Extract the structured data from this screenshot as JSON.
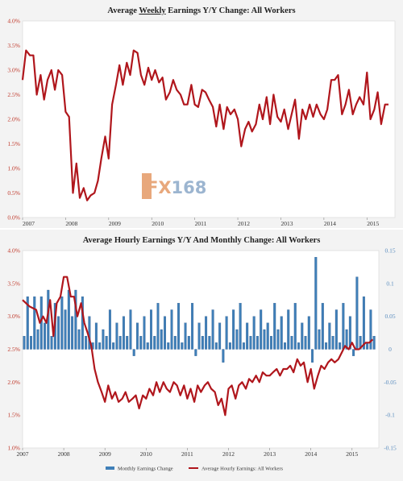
{
  "colors": {
    "red": "#b0161c",
    "blue": "#3f7fb8",
    "blue_edge": "#26558a",
    "left_tick": "#c0392b",
    "right_tick": "#5b8dbf",
    "grid": "#e3e3e3",
    "watermark_fx": "#e8a87c",
    "watermark_num": "#9cb5d0"
  },
  "watermark": {
    "fx": "FX",
    "num": "168"
  },
  "chart_data": [
    {
      "type": "line",
      "title": "Average Weekly Earnings Y/Y Change: All Workers",
      "title_parts": [
        "Average ",
        "Weekly",
        " Earnings Y/Y Change: All Workers"
      ],
      "xlabel": "",
      "ylabel": "",
      "xlim": [
        2007,
        2015.65
      ],
      "ylim": [
        0,
        4
      ],
      "yticks": [
        "0.0%",
        "0.5%",
        "1.0%",
        "1.5%",
        "2.0%",
        "2.5%",
        "3.0%",
        "3.5%",
        "4.0%"
      ],
      "xticks": [
        "2007",
        "2008",
        "2009",
        "2010",
        "2011",
        "2012",
        "2013",
        "2014",
        "2015"
      ],
      "grid": false,
      "series": [
        {
          "color": "red",
          "x": [
            2007.0,
            2007.08,
            2007.17,
            2007.25,
            2007.33,
            2007.42,
            2007.5,
            2007.58,
            2007.67,
            2007.75,
            2007.83,
            2007.92,
            2008.0,
            2008.08,
            2008.17,
            2008.25,
            2008.33,
            2008.42,
            2008.5,
            2008.58,
            2008.67,
            2008.75,
            2008.83,
            2008.92,
            2009.0,
            2009.08,
            2009.17,
            2009.25,
            2009.33,
            2009.42,
            2009.5,
            2009.58,
            2009.67,
            2009.75,
            2009.83,
            2009.92,
            2010.0,
            2010.08,
            2010.17,
            2010.25,
            2010.33,
            2010.42,
            2010.5,
            2010.58,
            2010.67,
            2010.75,
            2010.83,
            2010.92,
            2011.0,
            2011.08,
            2011.17,
            2011.25,
            2011.33,
            2011.42,
            2011.5,
            2011.58,
            2011.67,
            2011.75,
            2011.83,
            2011.92,
            2012.0,
            2012.08,
            2012.17,
            2012.25,
            2012.33,
            2012.42,
            2012.5,
            2012.58,
            2012.67,
            2012.75,
            2012.83,
            2012.92,
            2013.0,
            2013.08,
            2013.17,
            2013.25,
            2013.33,
            2013.42,
            2013.5,
            2013.58,
            2013.67,
            2013.75,
            2013.83,
            2013.92,
            2014.0,
            2014.08,
            2014.17,
            2014.25,
            2014.33,
            2014.42,
            2014.5,
            2014.58,
            2014.67,
            2014.75,
            2014.83,
            2014.92,
            2015.0,
            2015.08,
            2015.17,
            2015.25,
            2015.33,
            2015.42,
            2015.5
          ],
          "y": [
            2.8,
            3.4,
            3.3,
            3.3,
            2.5,
            2.9,
            2.4,
            2.8,
            3.0,
            2.6,
            3.0,
            2.9,
            2.15,
            2.05,
            0.5,
            1.1,
            0.4,
            0.6,
            0.35,
            0.45,
            0.5,
            0.75,
            1.2,
            1.65,
            1.2,
            2.3,
            2.7,
            3.1,
            2.7,
            3.15,
            2.9,
            3.4,
            3.35,
            2.9,
            2.7,
            3.05,
            2.8,
            3.0,
            2.75,
            2.85,
            2.4,
            2.55,
            2.8,
            2.6,
            2.5,
            2.3,
            2.3,
            2.7,
            2.3,
            2.25,
            2.6,
            2.55,
            2.4,
            2.25,
            1.85,
            2.3,
            1.8,
            2.25,
            2.1,
            2.2,
            2.0,
            1.45,
            1.8,
            1.95,
            1.75,
            1.9,
            2.3,
            2.0,
            2.45,
            1.9,
            2.5,
            2.05,
            1.95,
            2.2,
            1.8,
            2.1,
            2.4,
            1.6,
            2.2,
            2.0,
            2.3,
            2.05,
            2.3,
            2.1,
            2.0,
            2.2,
            2.8,
            2.8,
            2.9,
            2.1,
            2.3,
            2.6,
            2.1,
            2.3,
            2.45,
            2.3,
            2.95,
            2.0,
            2.2,
            2.55,
            1.9,
            2.3,
            2.3
          ]
        }
      ]
    },
    {
      "type": "bar+line",
      "title": "Average Hourly Earnings Y/Y And Monthly Change: All Workers",
      "xlabel": "",
      "ylabel": "",
      "xlim": [
        2007,
        2015.65
      ],
      "ylim_left": [
        1.0,
        4.0
      ],
      "ylim_right": [
        -0.15,
        0.15
      ],
      "yticks_left": [
        "1.0%",
        "1.5%",
        "2.0%",
        "2.5%",
        "3.0%",
        "3.5%",
        "4.0%"
      ],
      "yticks_right": [
        "-0.15",
        "-0.1",
        "-0.05",
        "0",
        "0.05",
        "0.1",
        "0.15"
      ],
      "xticks": [
        "2007",
        "2008",
        "2009",
        "2010",
        "2011",
        "2012",
        "2013",
        "2014",
        "2015"
      ],
      "grid": false,
      "legend": [
        "Monthly Earnings Change",
        "Average Hourly Earnings: All Workers"
      ],
      "series": [
        {
          "name": "Monthly Earnings Change",
          "kind": "bar",
          "axis": "right",
          "color": "blue",
          "x_start": 2007.0,
          "x_step": 0.0833,
          "values": [
            0.02,
            0.08,
            0.02,
            0.08,
            0.03,
            0.08,
            0.04,
            0.09,
            0.02,
            0.07,
            0.05,
            0.08,
            0.06,
            0.09,
            0.05,
            0.09,
            0.03,
            0.08,
            0.02,
            0.05,
            0.01,
            0.04,
            0.01,
            0.03,
            0.02,
            0.06,
            0.01,
            0.04,
            0.02,
            0.05,
            0.02,
            0.06,
            -0.01,
            0.04,
            0.02,
            0.05,
            0.01,
            0.06,
            0.02,
            0.07,
            0.03,
            0.05,
            0.01,
            0.06,
            0.02,
            0.07,
            0.01,
            0.04,
            0.02,
            0.07,
            -0.01,
            0.04,
            0.02,
            0.05,
            0.02,
            0.06,
            0.01,
            0.04,
            -0.02,
            0.05,
            0.01,
            0.06,
            0.03,
            0.07,
            0.01,
            0.04,
            0.02,
            0.05,
            0.02,
            0.06,
            0.03,
            0.04,
            0.02,
            0.07,
            0.03,
            0.05,
            0.01,
            0.06,
            0.02,
            0.07,
            0.01,
            0.04,
            0.02,
            0.05,
            -0.02,
            0.14,
            0.03,
            0.07,
            0.01,
            0.04,
            0.02,
            0.06,
            0.01,
            0.07,
            0.03,
            0.05,
            -0.01,
            0.11,
            0.02,
            0.08,
            0.01,
            0.06,
            0.02
          ]
        },
        {
          "name": "Average Hourly Earnings: All Workers",
          "kind": "line",
          "axis": "left",
          "color": "red",
          "x": [
            2007.0,
            2007.17,
            2007.33,
            2007.42,
            2007.5,
            2007.58,
            2007.67,
            2007.75,
            2007.83,
            2007.92,
            2008.0,
            2008.08,
            2008.17,
            2008.25,
            2008.33,
            2008.42,
            2008.5,
            2008.58,
            2008.67,
            2008.75,
            2008.83,
            2008.92,
            2009.0,
            2009.08,
            2009.17,
            2009.25,
            2009.33,
            2009.42,
            2009.5,
            2009.58,
            2009.67,
            2009.75,
            2009.83,
            2009.92,
            2010.0,
            2010.08,
            2010.17,
            2010.25,
            2010.33,
            2010.42,
            2010.5,
            2010.58,
            2010.67,
            2010.75,
            2010.83,
            2010.92,
            2011.0,
            2011.08,
            2011.17,
            2011.25,
            2011.33,
            2011.42,
            2011.5,
            2011.58,
            2011.67,
            2011.75,
            2011.83,
            2011.92,
            2012.0,
            2012.08,
            2012.17,
            2012.25,
            2012.33,
            2012.42,
            2012.5,
            2012.58,
            2012.67,
            2012.75,
            2012.83,
            2012.92,
            2013.0,
            2013.08,
            2013.17,
            2013.25,
            2013.33,
            2013.42,
            2013.5,
            2013.58,
            2013.67,
            2013.75,
            2013.83,
            2013.92,
            2014.0,
            2014.08,
            2014.17,
            2014.25,
            2014.33,
            2014.42,
            2014.5,
            2014.58,
            2014.67,
            2014.75,
            2014.83,
            2014.92,
            2015.0,
            2015.08,
            2015.17,
            2015.25,
            2015.33,
            2015.42,
            2015.5
          ],
          "y": [
            3.25,
            3.15,
            3.1,
            2.9,
            3.0,
            2.9,
            3.25,
            2.7,
            3.2,
            3.3,
            3.6,
            3.6,
            3.3,
            3.3,
            3.0,
            3.2,
            2.9,
            2.75,
            2.55,
            2.2,
            2.0,
            1.85,
            1.7,
            1.95,
            1.75,
            1.85,
            1.7,
            1.75,
            1.85,
            1.7,
            1.75,
            1.8,
            1.6,
            1.8,
            1.75,
            1.9,
            1.8,
            2.0,
            1.85,
            2.0,
            1.9,
            1.85,
            2.0,
            1.95,
            1.8,
            1.95,
            1.75,
            1.9,
            1.7,
            1.95,
            1.85,
            1.95,
            2.0,
            1.9,
            1.85,
            1.65,
            1.75,
            1.5,
            1.9,
            1.95,
            1.75,
            1.95,
            2.0,
            1.9,
            2.05,
            2.0,
            2.1,
            2.0,
            2.15,
            2.1,
            2.1,
            2.15,
            2.2,
            2.1,
            2.2,
            2.2,
            2.25,
            2.15,
            2.35,
            2.25,
            2.3,
            2.0,
            2.2,
            1.9,
            2.1,
            2.25,
            2.2,
            2.3,
            2.35,
            2.3,
            2.35,
            2.45,
            2.55,
            2.5,
            2.6,
            2.5,
            2.5,
            2.55,
            2.6,
            2.6,
            2.65
          ]
        }
      ]
    }
  ]
}
